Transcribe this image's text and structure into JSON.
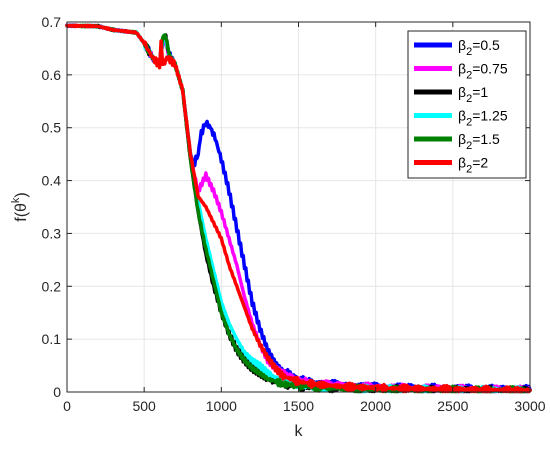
{
  "chart_data": {
    "type": "line",
    "title": "",
    "xlabel": "k",
    "ylabel": "f(θ^k)",
    "ylabel_parts": {
      "base": "f(θ",
      "sup": "k",
      "close": ")"
    },
    "xlim": [
      0,
      3000
    ],
    "ylim": [
      0,
      0.7
    ],
    "xticks": [
      0,
      500,
      1000,
      1500,
      2000,
      2500,
      3000
    ],
    "yticks": [
      0,
      0.1,
      0.2,
      0.3,
      0.4,
      0.5,
      0.6,
      0.7
    ],
    "xtick_labels": [
      "0",
      "500",
      "1000",
      "1500",
      "2000",
      "2500",
      "3000"
    ],
    "ytick_labels": [
      "0",
      "0.1",
      "0.2",
      "0.3",
      "0.4",
      "0.5",
      "0.6",
      "0.7"
    ],
    "grid": true,
    "legend_position": "top-right",
    "series": [
      {
        "name": "β2=0.5",
        "label_parts": {
          "base": "β",
          "sub": "2",
          "rest": "=0.5"
        },
        "color": "#0000ff",
        "x": [
          0,
          200,
          300,
          450,
          500,
          560,
          600,
          620,
          640,
          660,
          700,
          750,
          800,
          820,
          850,
          870,
          900,
          930,
          960,
          1000,
          1050,
          1100,
          1150,
          1200,
          1250,
          1300,
          1350,
          1400,
          1500,
          1600,
          1800,
          2000,
          2500,
          3000
        ],
        "y": [
          0.693,
          0.692,
          0.685,
          0.68,
          0.66,
          0.63,
          0.62,
          0.66,
          0.67,
          0.64,
          0.62,
          0.57,
          0.45,
          0.43,
          0.45,
          0.49,
          0.51,
          0.5,
          0.48,
          0.44,
          0.38,
          0.31,
          0.24,
          0.17,
          0.12,
          0.08,
          0.055,
          0.04,
          0.025,
          0.018,
          0.013,
          0.01,
          0.007,
          0.005
        ]
      },
      {
        "name": "β2=0.75",
        "label_parts": {
          "base": "β",
          "sub": "2",
          "rest": "=0.75"
        },
        "color": "#ff00ff",
        "x": [
          0,
          200,
          300,
          450,
          500,
          560,
          600,
          620,
          640,
          660,
          700,
          750,
          800,
          850,
          900,
          950,
          1000,
          1050,
          1100,
          1150,
          1200,
          1250,
          1300,
          1350,
          1400,
          1500,
          1600,
          1800,
          2000,
          2500,
          3000
        ],
        "y": [
          0.693,
          0.692,
          0.685,
          0.68,
          0.66,
          0.63,
          0.62,
          0.66,
          0.665,
          0.64,
          0.62,
          0.57,
          0.44,
          0.38,
          0.41,
          0.38,
          0.34,
          0.29,
          0.24,
          0.18,
          0.13,
          0.09,
          0.06,
          0.045,
          0.035,
          0.022,
          0.016,
          0.012,
          0.009,
          0.006,
          0.004
        ]
      },
      {
        "name": "β2=1",
        "label_parts": {
          "base": "β",
          "sub": "2",
          "rest": "=1"
        },
        "color": "#000000",
        "x": [
          0,
          200,
          300,
          450,
          500,
          560,
          600,
          620,
          640,
          660,
          700,
          750,
          800,
          850,
          900,
          950,
          1000,
          1050,
          1100,
          1150,
          1200,
          1250,
          1300,
          1400,
          1500,
          1600,
          1800,
          2000,
          2500,
          3000
        ],
        "y": [
          0.693,
          0.692,
          0.685,
          0.68,
          0.66,
          0.63,
          0.62,
          0.67,
          0.67,
          0.64,
          0.62,
          0.57,
          0.44,
          0.34,
          0.26,
          0.2,
          0.15,
          0.11,
          0.08,
          0.06,
          0.045,
          0.035,
          0.025,
          0.015,
          0.01,
          0.008,
          0.006,
          0.005,
          0.004,
          0.003
        ]
      },
      {
        "name": "β2=1.25",
        "label_parts": {
          "base": "β",
          "sub": "2",
          "rest": "=1.25"
        },
        "color": "#00ffff",
        "x": [
          0,
          200,
          300,
          450,
          500,
          560,
          600,
          620,
          640,
          660,
          700,
          750,
          800,
          850,
          900,
          950,
          1000,
          1050,
          1100,
          1150,
          1200,
          1250,
          1300,
          1400,
          1500,
          1600,
          1800,
          2000,
          2500,
          3000
        ],
        "y": [
          0.693,
          0.692,
          0.685,
          0.68,
          0.66,
          0.63,
          0.62,
          0.665,
          0.67,
          0.64,
          0.62,
          0.57,
          0.45,
          0.36,
          0.29,
          0.23,
          0.17,
          0.13,
          0.1,
          0.075,
          0.06,
          0.05,
          0.035,
          0.02,
          0.014,
          0.01,
          0.008,
          0.006,
          0.004,
          0.003
        ]
      },
      {
        "name": "β2=1.5",
        "label_parts": {
          "base": "β",
          "sub": "2",
          "rest": "=1.5"
        },
        "color": "#008000",
        "x": [
          0,
          200,
          300,
          450,
          500,
          560,
          600,
          620,
          640,
          660,
          700,
          750,
          800,
          850,
          900,
          950,
          1000,
          1050,
          1100,
          1150,
          1200,
          1250,
          1300,
          1400,
          1500,
          1600,
          1800,
          2000,
          2500,
          3000
        ],
        "y": [
          0.693,
          0.692,
          0.685,
          0.68,
          0.66,
          0.63,
          0.62,
          0.67,
          0.675,
          0.64,
          0.62,
          0.57,
          0.44,
          0.34,
          0.27,
          0.21,
          0.15,
          0.11,
          0.08,
          0.06,
          0.045,
          0.035,
          0.025,
          0.015,
          0.012,
          0.01,
          0.007,
          0.005,
          0.004,
          0.003
        ]
      },
      {
        "name": "β2=2",
        "label_parts": {
          "base": "β",
          "sub": "2",
          "rest": "=2"
        },
        "color": "#ff0000",
        "x": [
          0,
          200,
          300,
          450,
          500,
          560,
          600,
          610,
          620,
          640,
          660,
          700,
          750,
          800,
          850,
          900,
          950,
          1000,
          1050,
          1100,
          1150,
          1200,
          1250,
          1300,
          1350,
          1400,
          1500,
          1600,
          1800,
          2000,
          2100,
          2500,
          2700,
          3000
        ],
        "y": [
          0.693,
          0.692,
          0.685,
          0.68,
          0.66,
          0.63,
          0.62,
          0.66,
          0.62,
          0.63,
          0.63,
          0.62,
          0.57,
          0.45,
          0.37,
          0.35,
          0.32,
          0.29,
          0.24,
          0.2,
          0.16,
          0.12,
          0.09,
          0.065,
          0.045,
          0.03,
          0.02,
          0.015,
          0.01,
          0.008,
          0.007,
          0.005,
          0.004,
          0.003
        ]
      }
    ]
  }
}
